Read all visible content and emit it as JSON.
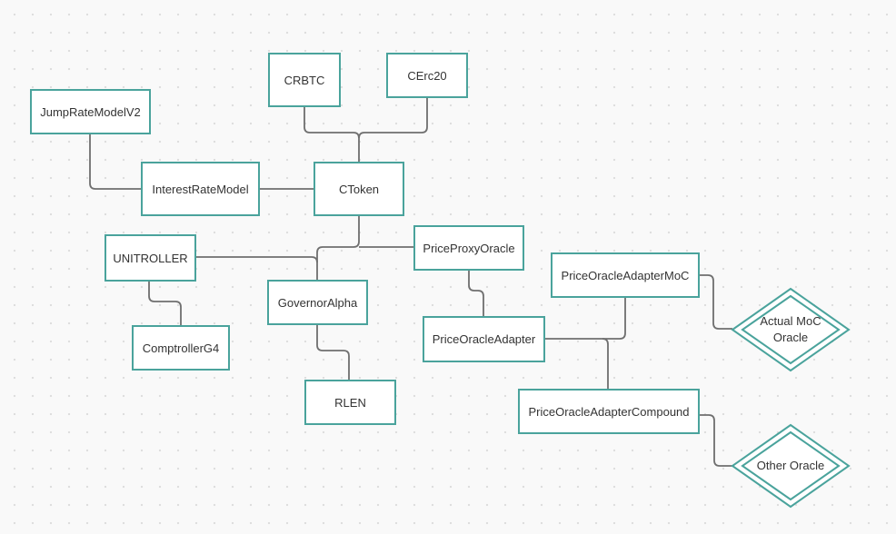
{
  "diagram": {
    "nodes": {
      "crbtc": "CRBTC",
      "cerc20": "CErc20",
      "jump_rate_model_v2": "JumpRateModelV2",
      "interest_rate_model": "InterestRateModel",
      "ctoken": "CToken",
      "unitroller": "UNITROLLER",
      "price_proxy_oracle": "PriceProxyOracle",
      "price_oracle_adapter_moc": "PriceOracleAdapterMoC",
      "governor_alpha": "GovernorAlpha",
      "comptroller_g4": "ComptrollerG4",
      "price_oracle_adapter": "PriceOracleAdapter",
      "rlen": "RLEN",
      "price_oracle_adapter_compound": "PriceOracleAdapterCompound",
      "actual_moc_oracle": "Actual MoC\nOracle",
      "other_oracle": "Other Oracle"
    },
    "colors": {
      "node_border": "#4aa39c",
      "connector": "#6f6f6f"
    }
  }
}
